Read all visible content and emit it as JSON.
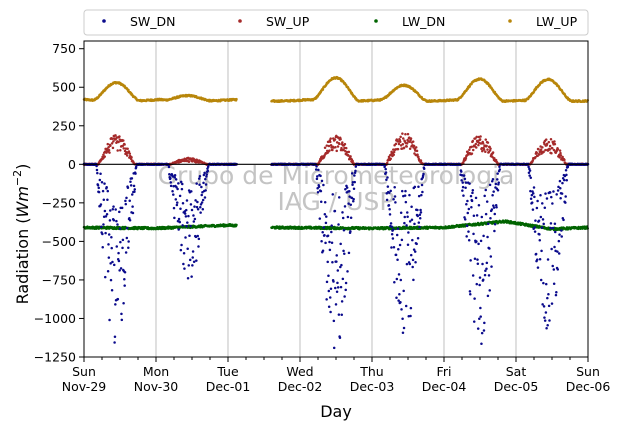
{
  "chart_data": {
    "type": "scatter",
    "xlabel": "Day",
    "ylabel_main": "Radiation (",
    "ylabel_unit": "Wm",
    "ylabel_exp": "−2",
    "ylabel_close": ")",
    "ylim": [
      -1250,
      800
    ],
    "yticks": [
      -1250,
      -1000,
      -750,
      -500,
      -250,
      0,
      250,
      500,
      750
    ],
    "ytick_labels": [
      "−1250",
      "−1000",
      "−750",
      "−500",
      "−250",
      "0",
      "250",
      "500",
      "750"
    ],
    "xlim": [
      0,
      7
    ],
    "xticks": [
      {
        "x": 0,
        "day": "Sun",
        "date": "Nov-29"
      },
      {
        "x": 1,
        "day": "Mon",
        "date": "Nov-30"
      },
      {
        "x": 2,
        "day": "Tue",
        "date": "Dec-01"
      },
      {
        "x": 3,
        "day": "Wed",
        "date": "Dec-02"
      },
      {
        "x": 4,
        "day": "Thu",
        "date": "Dec-03"
      },
      {
        "x": 5,
        "day": "Fri",
        "date": "Dec-04"
      },
      {
        "x": 6,
        "day": "Sat",
        "date": "Dec-05"
      },
      {
        "x": 7,
        "day": "Sun",
        "date": "Dec-06"
      }
    ],
    "legend_position": "top",
    "vertical_grid": true,
    "zero_line": true,
    "data_gap": [
      2.12,
      2.6
    ],
    "watermark": [
      "Grupo de Micrometeorologia",
      "IAG / USP"
    ],
    "series": [
      {
        "name": "SW_DN",
        "color": "#0a0a8c",
        "peaks": [
          [
            0.45,
            -1170
          ],
          [
            1.45,
            -780
          ],
          [
            3.5,
            -1220
          ],
          [
            4.45,
            -1120
          ],
          [
            5.5,
            -1180
          ],
          [
            6.45,
            -1080
          ]
        ]
      },
      {
        "name": "SW_UP",
        "color": "#a52a2a",
        "peaks": [
          [
            0.45,
            190
          ],
          [
            1.45,
            40
          ],
          [
            3.5,
            190
          ],
          [
            4.45,
            210
          ],
          [
            5.5,
            190
          ],
          [
            6.45,
            170
          ]
        ]
      },
      {
        "name": "LW_DN",
        "color": "#006400",
        "base": [
          [
            0,
            -410
          ],
          [
            1,
            -415
          ],
          [
            2,
            -395
          ],
          [
            2.6,
            -410
          ],
          [
            4,
            -415
          ],
          [
            5,
            -410
          ],
          [
            5.85,
            -370
          ],
          [
            6.5,
            -420
          ],
          [
            7,
            -410
          ]
        ]
      },
      {
        "name": "LW_UP",
        "color": "#b8860b",
        "base": 420,
        "peaks": [
          [
            0.45,
            540
          ],
          [
            1.45,
            455
          ],
          [
            3.5,
            570
          ],
          [
            4.45,
            520
          ],
          [
            5.5,
            560
          ],
          [
            6.45,
            555
          ]
        ]
      }
    ]
  }
}
